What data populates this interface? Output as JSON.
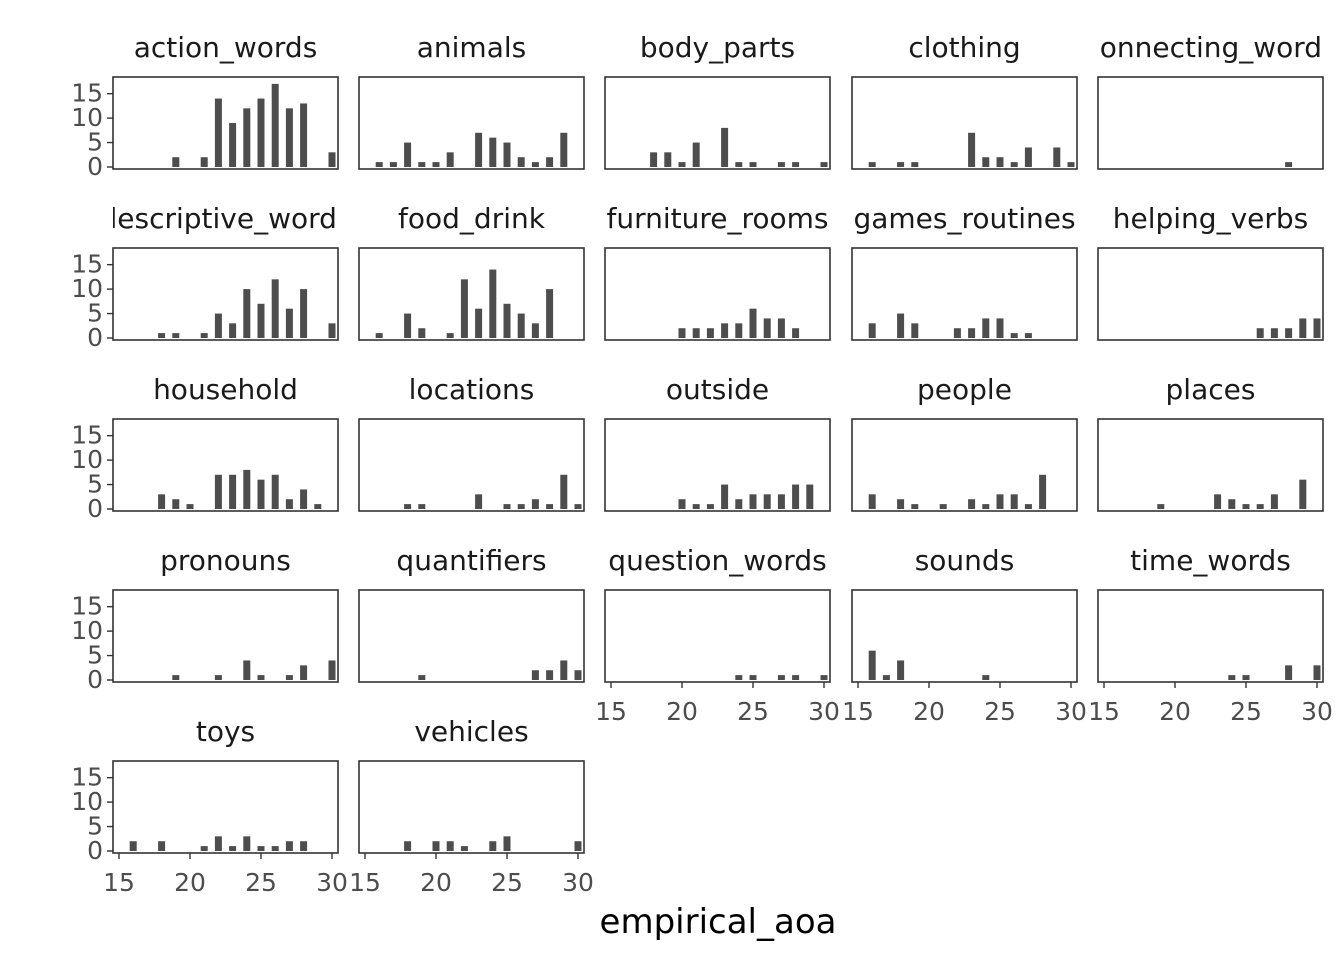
{
  "chart_data": {
    "type": "bar",
    "facet_by": "lexical_class",
    "xlabel": "empirical_aoa",
    "ylabel": "",
    "xlim": [
      15,
      30
    ],
    "ylim": [
      0,
      18
    ],
    "x_ticks": [
      "15",
      "20",
      "25",
      "30"
    ],
    "y_ticks": [
      "0",
      "5",
      "10",
      "15"
    ],
    "bar_color": "#4d4d4d",
    "x": [
      16,
      17,
      18,
      19,
      20,
      21,
      22,
      23,
      24,
      25,
      26,
      27,
      28,
      29,
      30
    ],
    "panels": [
      {
        "name": "action_words",
        "values": [
          0,
          0,
          0,
          2,
          0,
          2,
          14,
          9,
          12,
          14,
          17,
          12,
          13,
          0,
          3
        ]
      },
      {
        "name": "animals",
        "values": [
          1,
          1,
          5,
          1,
          1,
          3,
          0,
          7,
          6,
          5,
          2,
          1,
          2,
          7,
          0
        ]
      },
      {
        "name": "body_parts",
        "values": [
          0,
          0,
          3,
          3,
          1,
          5,
          0,
          8,
          1,
          1,
          0,
          1,
          1,
          0,
          1
        ]
      },
      {
        "name": "clothing",
        "values": [
          1,
          0,
          1,
          1,
          0,
          0,
          0,
          7,
          2,
          2,
          1,
          4,
          0,
          4,
          1
        ]
      },
      {
        "name": "connecting_words",
        "values": [
          0,
          0,
          0,
          0,
          0,
          0,
          0,
          0,
          0,
          0,
          0,
          0,
          1,
          0,
          0
        ]
      },
      {
        "name": "descriptive_words",
        "values": [
          0,
          0,
          1,
          1,
          0,
          1,
          5,
          3,
          10,
          7,
          12,
          6,
          10,
          0,
          3
        ]
      },
      {
        "name": "food_drink",
        "values": [
          1,
          0,
          5,
          2,
          0,
          1,
          12,
          6,
          14,
          7,
          5,
          3,
          10,
          0,
          0
        ]
      },
      {
        "name": "furniture_rooms",
        "values": [
          0,
          0,
          0,
          0,
          2,
          2,
          2,
          3,
          3,
          6,
          4,
          4,
          2,
          0,
          0
        ]
      },
      {
        "name": "games_routines",
        "values": [
          3,
          0,
          5,
          3,
          0,
          0,
          2,
          2,
          4,
          4,
          1,
          1,
          0,
          0,
          0
        ]
      },
      {
        "name": "helping_verbs",
        "values": [
          0,
          0,
          0,
          0,
          0,
          0,
          0,
          0,
          0,
          0,
          2,
          2,
          2,
          4,
          4
        ]
      },
      {
        "name": "household",
        "values": [
          0,
          0,
          3,
          2,
          1,
          0,
          7,
          7,
          8,
          6,
          7,
          2,
          4,
          1,
          0
        ]
      },
      {
        "name": "locations",
        "values": [
          0,
          0,
          1,
          1,
          0,
          0,
          0,
          3,
          0,
          1,
          1,
          2,
          1,
          7,
          1
        ]
      },
      {
        "name": "outside",
        "values": [
          0,
          0,
          0,
          0,
          2,
          1,
          1,
          5,
          2,
          3,
          3,
          3,
          5,
          5,
          0
        ]
      },
      {
        "name": "people",
        "values": [
          3,
          0,
          2,
          1,
          0,
          1,
          0,
          2,
          1,
          3,
          3,
          1,
          7,
          0,
          0
        ]
      },
      {
        "name": "places",
        "values": [
          0,
          0,
          0,
          1,
          0,
          0,
          0,
          3,
          2,
          1,
          1,
          3,
          0,
          6,
          0
        ]
      },
      {
        "name": "pronouns",
        "values": [
          0,
          0,
          0,
          1,
          0,
          0,
          1,
          0,
          4,
          1,
          0,
          1,
          3,
          0,
          4
        ]
      },
      {
        "name": "quantifiers",
        "values": [
          0,
          0,
          0,
          1,
          0,
          0,
          0,
          0,
          0,
          0,
          0,
          2,
          2,
          4,
          2
        ]
      },
      {
        "name": "question_words",
        "values": [
          0,
          0,
          0,
          0,
          0,
          0,
          0,
          0,
          1,
          1,
          0,
          1,
          1,
          0,
          1
        ]
      },
      {
        "name": "sounds",
        "values": [
          6,
          1,
          4,
          0,
          0,
          0,
          0,
          0,
          1,
          0,
          0,
          0,
          0,
          0,
          0
        ]
      },
      {
        "name": "time_words",
        "values": [
          0,
          0,
          0,
          0,
          0,
          0,
          0,
          0,
          1,
          1,
          0,
          0,
          3,
          0,
          3
        ]
      },
      {
        "name": "toys",
        "values": [
          2,
          0,
          2,
          0,
          0,
          1,
          3,
          1,
          3,
          1,
          1,
          2,
          2,
          0,
          0
        ]
      },
      {
        "name": "vehicles",
        "values": [
          0,
          0,
          2,
          0,
          2,
          2,
          1,
          0,
          2,
          3,
          0,
          0,
          0,
          0,
          2
        ]
      }
    ]
  }
}
